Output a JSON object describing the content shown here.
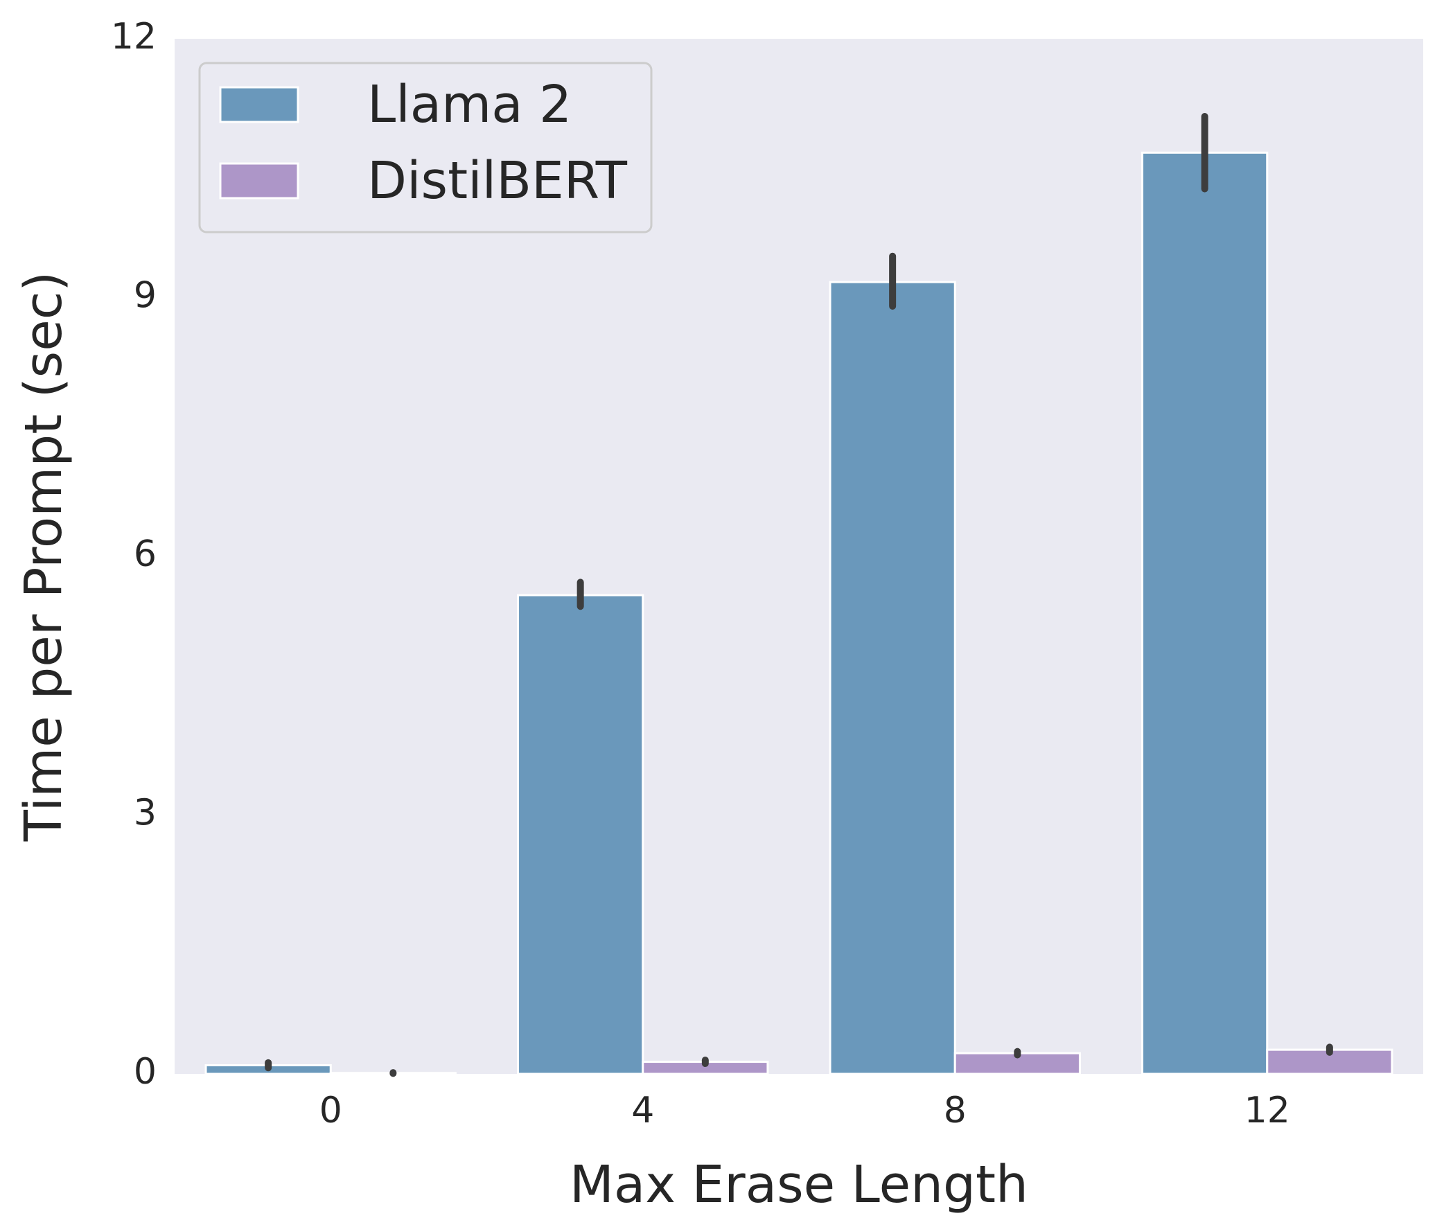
{
  "chart_data": {
    "type": "bar",
    "title": "",
    "xlabel": "Max Erase Length",
    "ylabel": "Time per Prompt (sec)",
    "categories": [
      "0",
      "4",
      "8",
      "12"
    ],
    "ylim": [
      0,
      12
    ],
    "yticks": [
      "0",
      "3",
      "6",
      "9",
      "12"
    ],
    "grid": false,
    "legend_position": "top-left",
    "series": [
      {
        "name": "Llama 2",
        "color": "#6a98bb",
        "values": [
          0.1,
          5.55,
          9.18,
          10.68
        ],
        "error_low": [
          0.07,
          5.42,
          8.9,
          10.26
        ],
        "error_high": [
          0.13,
          5.7,
          9.48,
          11.1
        ]
      },
      {
        "name": "DistilBERT",
        "color": "#ad96c8",
        "values": [
          0.01,
          0.14,
          0.24,
          0.28
        ],
        "error_low": [
          0.005,
          0.12,
          0.22,
          0.25
        ],
        "error_high": [
          0.015,
          0.16,
          0.26,
          0.31
        ]
      }
    ],
    "colors": {
      "plot_background": "#eaeaf2",
      "error_bar": "#3d3d3d",
      "text": "#262626"
    }
  }
}
